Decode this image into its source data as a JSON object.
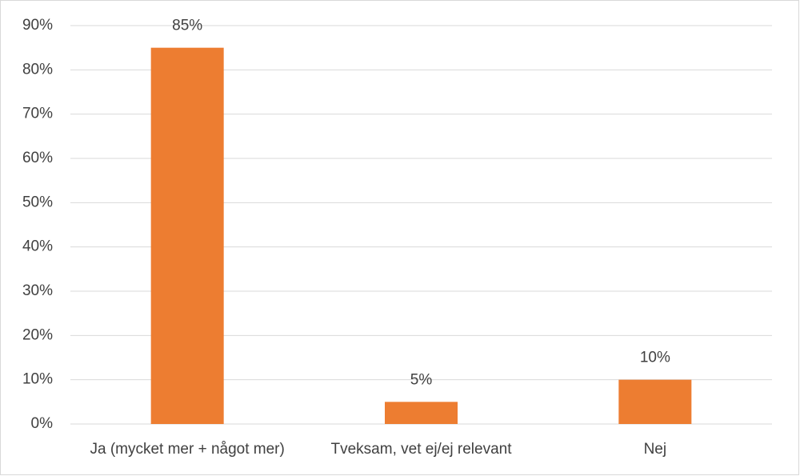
{
  "chart_data": {
    "type": "bar",
    "categories": [
      "Ja (mycket mer + något mer)",
      "Tveksam, vet ej/ej relevant",
      "Nej"
    ],
    "values": [
      85,
      5,
      10
    ],
    "value_labels": [
      "85%",
      "5%",
      "10%"
    ],
    "color": "#ed7d31",
    "ylim": [
      0,
      90
    ],
    "yticks": [
      {
        "value": 0,
        "label": "0%"
      },
      {
        "value": 10,
        "label": "10%"
      },
      {
        "value": 20,
        "label": "20%"
      },
      {
        "value": 30,
        "label": "30%"
      },
      {
        "value": 40,
        "label": "40%"
      },
      {
        "value": 50,
        "label": "50%"
      },
      {
        "value": 60,
        "label": "60%"
      },
      {
        "value": 70,
        "label": "70%"
      },
      {
        "value": 80,
        "label": "80%"
      },
      {
        "value": 90,
        "label": "90%"
      }
    ],
    "grid": true
  }
}
